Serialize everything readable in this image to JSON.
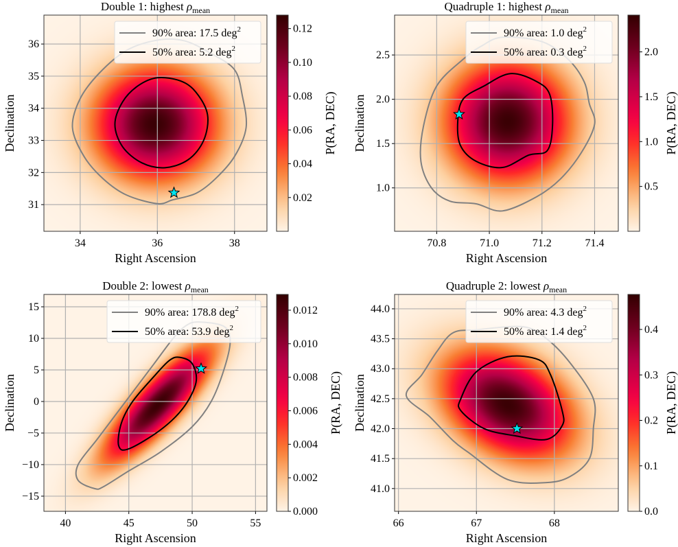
{
  "chart_data": [
    {
      "type": "heatmap",
      "title": {
        "prefix": "Double 1: highest ",
        "symbol": "ρ",
        "subscript": "mean"
      },
      "xlabel": "Right Ascension",
      "ylabel": "Declination",
      "colorbar_label": "P(RA, DEC)",
      "xlim": [
        33.06,
        38.84
      ],
      "ylim": [
        30.17,
        36.9
      ],
      "xticks": [
        34,
        36,
        38
      ],
      "xtick_labels": [
        "34",
        "36",
        "38"
      ],
      "yticks": [
        31,
        32,
        33,
        34,
        35,
        36
      ],
      "ytick_labels": [
        "31",
        "32",
        "33",
        "34",
        "35",
        "36"
      ],
      "clim": [
        0,
        0.128
      ],
      "cticks": [
        0.02,
        0.04,
        0.06,
        0.08,
        0.1,
        0.12
      ],
      "ctick_labels": [
        "0.02",
        "0.04",
        "0.06",
        "0.08",
        "0.10",
        "0.12"
      ],
      "grid": true,
      "legend_placement": "top-right",
      "legend": [
        {
          "label": "90% area: 17.5 deg",
          "sup": "2",
          "color": "#808080"
        },
        {
          "label": "50% area: 5.2 deg",
          "sup": "2",
          "color": "#000000"
        }
      ],
      "contour_90": [
        [
          36.0,
          36.12
        ],
        [
          36.7,
          36.1
        ],
        [
          37.4,
          35.7
        ],
        [
          38.0,
          35.2
        ],
        [
          38.2,
          34.4
        ],
        [
          38.3,
          33.4
        ],
        [
          38.0,
          32.5
        ],
        [
          37.5,
          31.8
        ],
        [
          37.0,
          31.35
        ],
        [
          36.4,
          31.15
        ],
        [
          36.0,
          31.03
        ],
        [
          35.2,
          31.3
        ],
        [
          34.6,
          31.8
        ],
        [
          34.1,
          32.5
        ],
        [
          33.8,
          33.4
        ],
        [
          34.0,
          34.3
        ],
        [
          34.5,
          35.1
        ],
        [
          35.2,
          35.8
        ]
      ],
      "contour_50": [
        [
          36.0,
          34.95
        ],
        [
          36.6,
          34.85
        ],
        [
          37.0,
          34.5
        ],
        [
          37.3,
          33.8
        ],
        [
          37.2,
          33.0
        ],
        [
          36.8,
          32.4
        ],
        [
          36.2,
          32.15
        ],
        [
          35.6,
          32.3
        ],
        [
          35.1,
          32.8
        ],
        [
          34.9,
          33.5
        ],
        [
          35.1,
          34.2
        ],
        [
          35.5,
          34.7
        ]
      ],
      "true_position": [
        36.43,
        31.37
      ],
      "star_color": "#00e5ee"
    },
    {
      "type": "heatmap",
      "title": {
        "prefix": "Quadruple 1: highest ",
        "symbol": "ρ",
        "subscript": "mean"
      },
      "xlabel": "Right Ascension",
      "ylabel": "Declination",
      "colorbar_label": "P(RA, DEC)",
      "xlim": [
        70.64,
        71.49
      ],
      "ylim": [
        0.51,
        2.95
      ],
      "xticks": [
        70.8,
        71.0,
        71.2,
        71.4
      ],
      "xtick_labels": [
        "70.8",
        "71.0",
        "71.2",
        "71.4"
      ],
      "yticks": [
        1.0,
        1.5,
        2.0,
        2.5
      ],
      "ytick_labels": [
        "1.0",
        "1.5",
        "2.0",
        "2.5"
      ],
      "clim": [
        0,
        2.41
      ],
      "cticks": [
        0.5,
        1.0,
        1.5,
        2.0
      ],
      "ctick_labels": [
        "0.5",
        "1.0",
        "1.5",
        "2.0"
      ],
      "grid": true,
      "legend_placement": "top-right",
      "legend": [
        {
          "label": "90% area: 1.0 deg",
          "sup": "2",
          "color": "#808080"
        },
        {
          "label": "50% area: 0.3 deg",
          "sup": "2",
          "color": "#000000"
        }
      ],
      "contour_90": [
        [
          71.05,
          2.7
        ],
        [
          71.2,
          2.65
        ],
        [
          71.3,
          2.45
        ],
        [
          71.36,
          2.2
        ],
        [
          71.38,
          1.95
        ],
        [
          71.4,
          1.72
        ],
        [
          71.35,
          1.4
        ],
        [
          71.27,
          1.1
        ],
        [
          71.18,
          0.9
        ],
        [
          71.05,
          0.74
        ],
        [
          70.95,
          0.82
        ],
        [
          70.85,
          0.85
        ],
        [
          70.78,
          1.0
        ],
        [
          70.74,
          1.3
        ],
        [
          70.75,
          1.7
        ],
        [
          70.8,
          2.15
        ],
        [
          70.9,
          2.45
        ],
        [
          70.97,
          2.6
        ]
      ],
      "contour_50": [
        [
          71.08,
          2.29
        ],
        [
          71.18,
          2.2
        ],
        [
          71.23,
          2.05
        ],
        [
          71.24,
          1.7
        ],
        [
          71.22,
          1.42
        ],
        [
          71.15,
          1.37
        ],
        [
          71.05,
          1.23
        ],
        [
          70.95,
          1.3
        ],
        [
          70.89,
          1.48
        ],
        [
          70.88,
          1.75
        ],
        [
          70.9,
          2.0
        ],
        [
          70.98,
          2.15
        ]
      ],
      "true_position": [
        70.885,
        1.83
      ],
      "star_color": "#00e5ee"
    },
    {
      "type": "heatmap",
      "title": {
        "prefix": "Double 2: lowest ",
        "symbol": "ρ",
        "subscript": "mean"
      },
      "xlabel": "Right Ascension",
      "ylabel": "Declination",
      "colorbar_label": "P(RA, DEC)",
      "xlim": [
        38.3,
        55.9
      ],
      "ylim": [
        -17.4,
        16.96
      ],
      "xticks": [
        40,
        45,
        50,
        55
      ],
      "xtick_labels": [
        "40",
        "45",
        "50",
        "55"
      ],
      "yticks": [
        -15,
        -10,
        -5,
        0,
        5,
        10,
        15
      ],
      "ytick_labels": [
        "−15",
        "−10",
        "−5",
        "0",
        "5",
        "10",
        "15"
      ],
      "clim": [
        0,
        0.01294
      ],
      "cticks": [
        0,
        0.002,
        0.004,
        0.006,
        0.008,
        0.01,
        0.012
      ],
      "ctick_labels": [
        "0.000",
        "0.002",
        "0.004",
        "0.006",
        "0.008",
        "0.010",
        "0.012"
      ],
      "grid": true,
      "legend_placement": "top-right",
      "legend": [
        {
          "label": "90% area: 178.8 deg",
          "sup": "2",
          "color": "#808080"
        },
        {
          "label": "50% area: 53.9 deg",
          "sup": "2",
          "color": "#000000"
        }
      ],
      "contour_90": [
        [
          50.5,
          12.6
        ],
        [
          52.5,
          11.9
        ],
        [
          53.0,
          9.5
        ],
        [
          52.5,
          5.0
        ],
        [
          51.5,
          0.0
        ],
        [
          50.0,
          -4.0
        ],
        [
          47.5,
          -8.0
        ],
        [
          45.0,
          -11.0
        ],
        [
          43.0,
          -13.5
        ],
        [
          42.3,
          -13.8
        ],
        [
          41.0,
          -12.5
        ],
        [
          41.0,
          -10.0
        ],
        [
          42.5,
          -6.0
        ],
        [
          44.0,
          -2.0
        ],
        [
          45.5,
          2.0
        ],
        [
          47.0,
          6.0
        ],
        [
          48.5,
          10.0
        ],
        [
          49.5,
          12.0
        ]
      ],
      "contour_50": [
        [
          49.0,
          7.0
        ],
        [
          50.0,
          6.0
        ],
        [
          50.3,
          3.0
        ],
        [
          49.3,
          -1.0
        ],
        [
          47.5,
          -4.5
        ],
        [
          45.0,
          -7.5
        ],
        [
          44.2,
          -7.0
        ],
        [
          44.4,
          -3.5
        ],
        [
          45.3,
          0.0
        ],
        [
          47.0,
          4.0
        ],
        [
          48.2,
          6.5
        ]
      ],
      "true_position": [
        50.7,
        5.2
      ],
      "star_color": "#00e5ee"
    },
    {
      "type": "heatmap",
      "title": {
        "prefix": "Quadruple 2: lowest ",
        "symbol": "ρ",
        "subscript": "mean"
      },
      "xlabel": "Right Ascension",
      "ylabel": "Declination",
      "colorbar_label": "P(RA, DEC)",
      "xlim": [
        65.95,
        68.82
      ],
      "ylim": [
        40.62,
        44.24
      ],
      "xticks": [
        66,
        67,
        68
      ],
      "xtick_labels": [
        "66",
        "67",
        "68"
      ],
      "yticks": [
        41.0,
        41.5,
        42.0,
        42.5,
        43.0,
        43.5,
        44.0
      ],
      "ytick_labels": [
        "41.0",
        "41.5",
        "42.0",
        "42.5",
        "43.0",
        "43.5",
        "44.0"
      ],
      "clim": [
        0,
        0.477
      ],
      "cticks": [
        0,
        0.1,
        0.2,
        0.3,
        0.4
      ],
      "ctick_labels": [
        "0.0",
        "0.1",
        "0.2",
        "0.3",
        "0.4"
      ],
      "grid": true,
      "legend_placement": "top-right",
      "legend": [
        {
          "label": "90% area: 4.3 deg",
          "sup": "2",
          "color": "#808080"
        },
        {
          "label": "50% area: 1.4 deg",
          "sup": "2",
          "color": "#000000"
        }
      ],
      "contour_90": [
        [
          67.0,
          43.65
        ],
        [
          67.6,
          43.7
        ],
        [
          67.9,
          43.5
        ],
        [
          68.2,
          43.1
        ],
        [
          68.5,
          42.5
        ],
        [
          68.5,
          42.0
        ],
        [
          68.45,
          41.5
        ],
        [
          68.2,
          41.2
        ],
        [
          67.9,
          41.1
        ],
        [
          67.4,
          41.15
        ],
        [
          66.9,
          41.6
        ],
        [
          66.7,
          41.8
        ],
        [
          66.4,
          42.2
        ],
        [
          66.1,
          42.55
        ],
        [
          66.3,
          42.9
        ],
        [
          66.5,
          43.3
        ],
        [
          66.7,
          43.6
        ]
      ],
      "contour_50": [
        [
          67.0,
          42.95
        ],
        [
          67.4,
          43.2
        ],
        [
          67.8,
          43.15
        ],
        [
          67.95,
          42.9
        ],
        [
          68.1,
          42.3
        ],
        [
          68.1,
          42.05
        ],
        [
          67.9,
          41.82
        ],
        [
          67.5,
          41.88
        ],
        [
          67.1,
          42.0
        ],
        [
          66.8,
          42.3
        ],
        [
          66.8,
          42.5
        ]
      ],
      "true_position": [
        67.52,
        42.0
      ],
      "star_color": "#00e5ee"
    }
  ]
}
